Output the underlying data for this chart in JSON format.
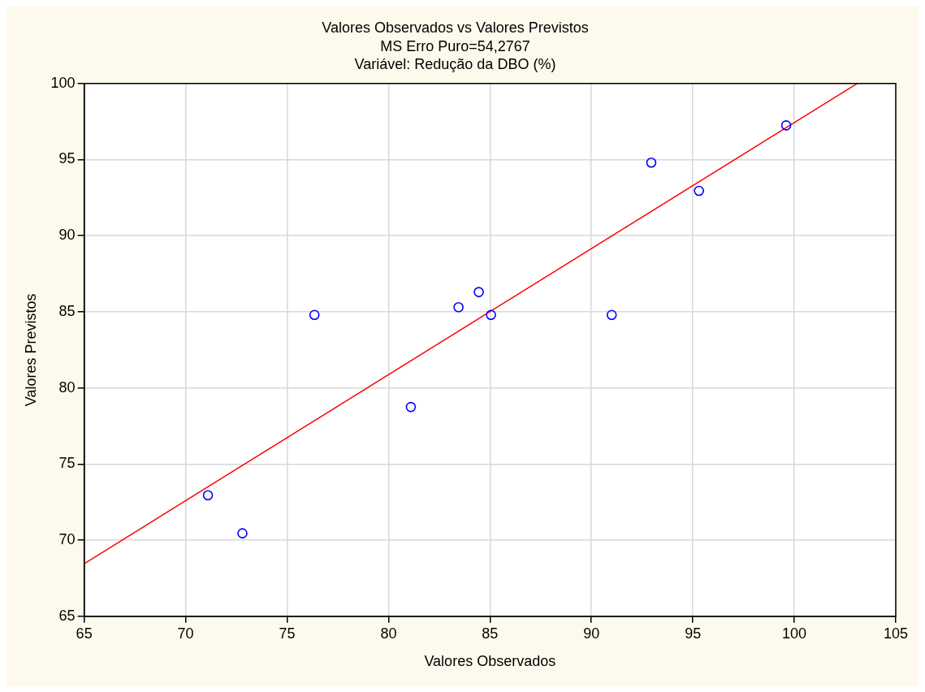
{
  "chart_data": {
    "type": "scatter",
    "title": "Valores Observados vs Valores Previstos",
    "subtitle": "MS Erro Puro=54,2767",
    "annotations": [
      "Variável: Redução da DBO (%)"
    ],
    "xlabel": "Valores Observados",
    "ylabel": "Valores Previstos",
    "xlim": [
      65,
      105
    ],
    "xticks": [
      65,
      70,
      75,
      80,
      85,
      90,
      95,
      100,
      105
    ],
    "ylim": [
      65,
      100
    ],
    "yticks": [
      65,
      70,
      75,
      80,
      85,
      90,
      95,
      100
    ],
    "grid": true,
    "marker": "circle",
    "series": [
      {
        "type": "scatter",
        "color": "#0000ff",
        "x": [
          71.1,
          72.8,
          76.35,
          81.1,
          83.45,
          84.45,
          85.05,
          91.0,
          92.95,
          95.3,
          99.6
        ],
        "values": [
          72.95,
          70.45,
          84.8,
          78.75,
          85.3,
          86.3,
          84.8,
          84.8,
          94.8,
          92.95,
          97.25
        ]
      },
      {
        "type": "line",
        "color": "#ff0000",
        "marker": "none",
        "x": [
          65,
          103.1
        ],
        "values": [
          68.45,
          100
        ]
      }
    ]
  }
}
